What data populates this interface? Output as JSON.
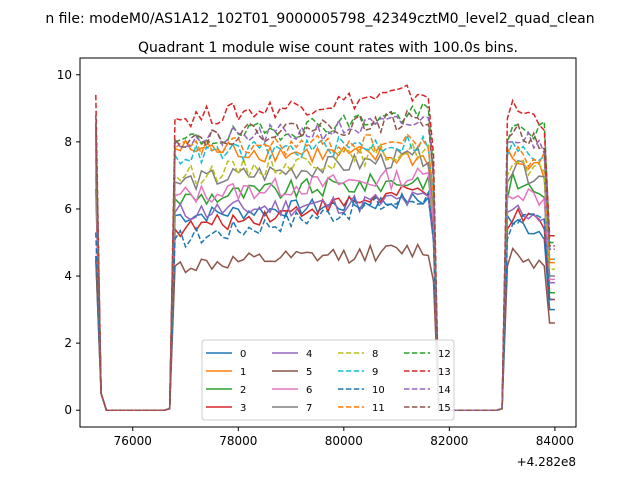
{
  "figure": {
    "suptitle": "n file: modeM0/AS1A12_102T01_9000005798_42349cztM0_level2_quad_clean",
    "title": "Quadrant 1 module wise count rates with 100.0s bins."
  },
  "chart_data": {
    "type": "line",
    "title": "Quadrant 1 module wise count rates with 100.0s bins.",
    "xlabel": "",
    "ylabel": "",
    "x_offset_label": "+4.282e8",
    "xlim": [
      75000,
      84400
    ],
    "ylim": [
      -0.5,
      10.5
    ],
    "xticks": [
      76000,
      78000,
      80000,
      82000,
      84000
    ],
    "xtick_labels": [
      "76000",
      "78000",
      "80000",
      "82000",
      "84000"
    ],
    "yticks": [
      0,
      2,
      4,
      6,
      8,
      10
    ],
    "ytick_labels": [
      "0",
      "2",
      "4",
      "6",
      "8",
      "10"
    ],
    "grid": false,
    "legend_position": "lower center",
    "legend_columns": 4,
    "segments": [
      {
        "x0": 75300,
        "x1": 75500,
        "kind": "fall"
      },
      {
        "x0": 75500,
        "x1": 76700,
        "kind": "zero"
      },
      {
        "x0": 76700,
        "x1": 76900,
        "kind": "rise"
      },
      {
        "x0": 76900,
        "x1": 81700,
        "kind": "plateau"
      },
      {
        "x0": 81700,
        "x1": 81900,
        "kind": "fall"
      },
      {
        "x0": 81900,
        "x1": 83000,
        "kind": "zero"
      },
      {
        "x0": 83000,
        "x1": 83200,
        "kind": "rise"
      },
      {
        "x0": 83200,
        "x1": 84000,
        "kind": "plateau"
      }
    ],
    "bin_width": 100,
    "series": [
      {
        "name": "0",
        "color": "#1f77b4",
        "dash": false,
        "start": 4.5,
        "level1": [
          5.8,
          6.3
        ],
        "level2": [
          5.6,
          5.2
        ],
        "end": 3.0,
        "noise": 0.25
      },
      {
        "name": "1",
        "color": "#ff7f0e",
        "dash": false,
        "start": 8.3,
        "level1": [
          7.8,
          7.5
        ],
        "level2": [
          7.4,
          7.0
        ],
        "end": 4.4,
        "noise": 0.3
      },
      {
        "name": "2",
        "color": "#2ca02c",
        "dash": false,
        "start": 7.8,
        "level1": [
          6.3,
          6.9
        ],
        "level2": [
          6.8,
          6.4
        ],
        "end": 3.5,
        "noise": 0.3
      },
      {
        "name": "3",
        "color": "#d62728",
        "dash": false,
        "start": 6.6,
        "level1": [
          5.4,
          6.6
        ],
        "level2": [
          5.8,
          5.4
        ],
        "end": 3.3,
        "noise": 0.25
      },
      {
        "name": "4",
        "color": "#9467bd",
        "dash": false,
        "start": 7.0,
        "level1": [
          5.9,
          6.3
        ],
        "level2": [
          6.0,
          5.7
        ],
        "end": 3.8,
        "noise": 0.3
      },
      {
        "name": "5",
        "color": "#8c564b",
        "dash": false,
        "start": 4.6,
        "level1": [
          4.3,
          4.8
        ],
        "level2": [
          4.7,
          4.2
        ],
        "end": 2.6,
        "noise": 0.25
      },
      {
        "name": "6",
        "color": "#e377c2",
        "dash": false,
        "start": 7.2,
        "level1": [
          6.4,
          7.0
        ],
        "level2": [
          6.6,
          6.2
        ],
        "end": 3.9,
        "noise": 0.3
      },
      {
        "name": "7",
        "color": "#7f7f7f",
        "dash": false,
        "start": 7.5,
        "level1": [
          6.8,
          7.6
        ],
        "level2": [
          7.2,
          6.8
        ],
        "end": 4.0,
        "noise": 0.3
      },
      {
        "name": "8",
        "color": "#bcbd22",
        "dash": true,
        "start": 8.0,
        "level1": [
          7.0,
          7.8
        ],
        "level2": [
          7.3,
          6.9
        ],
        "end": 4.2,
        "noise": 0.3
      },
      {
        "name": "9",
        "color": "#17becf",
        "dash": true,
        "start": 8.2,
        "level1": [
          7.6,
          8.0
        ],
        "level2": [
          7.8,
          7.3
        ],
        "end": 4.5,
        "noise": 0.3
      },
      {
        "name": "10",
        "color": "#1f77b4",
        "dash": true,
        "start": 5.3,
        "level1": [
          5.1,
          6.4
        ],
        "level2": [
          5.8,
          5.4
        ],
        "end": 3.3,
        "noise": 0.3
      },
      {
        "name": "11",
        "color": "#ff7f0e",
        "dash": true,
        "start": 8.4,
        "level1": [
          7.8,
          8.0
        ],
        "level2": [
          7.6,
          7.4
        ],
        "end": 4.5,
        "noise": 0.3
      },
      {
        "name": "12",
        "color": "#2ca02c",
        "dash": true,
        "start": 8.5,
        "level1": [
          8.0,
          8.9
        ],
        "level2": [
          8.4,
          8.3
        ],
        "end": 5.0,
        "noise": 0.3
      },
      {
        "name": "13",
        "color": "#d62728",
        "dash": true,
        "start": 9.4,
        "level1": [
          8.7,
          9.5
        ],
        "level2": [
          9.0,
          8.5
        ],
        "end": 5.2,
        "noise": 0.3
      },
      {
        "name": "14",
        "color": "#9467bd",
        "dash": true,
        "start": 8.6,
        "level1": [
          8.0,
          8.6
        ],
        "level2": [
          8.2,
          7.8
        ],
        "end": 4.8,
        "noise": 0.3
      },
      {
        "name": "15",
        "color": "#8c564b",
        "dash": true,
        "start": 8.8,
        "level1": [
          8.1,
          8.7
        ],
        "level2": [
          8.3,
          7.9
        ],
        "end": 4.9,
        "noise": 0.3
      }
    ]
  }
}
